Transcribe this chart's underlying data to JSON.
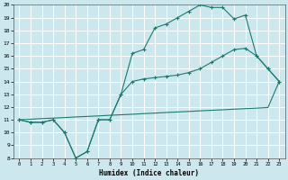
{
  "title": "",
  "xlabel": "Humidex (Indice chaleur)",
  "xlim": [
    -0.5,
    23.5
  ],
  "ylim": [
    8,
    20
  ],
  "xticks": [
    0,
    1,
    2,
    3,
    4,
    5,
    6,
    7,
    8,
    9,
    10,
    11,
    12,
    13,
    14,
    15,
    16,
    17,
    18,
    19,
    20,
    21,
    22,
    23
  ],
  "yticks": [
    8,
    9,
    10,
    11,
    12,
    13,
    14,
    15,
    16,
    17,
    18,
    19,
    20
  ],
  "bg_color": "#cce8ee",
  "line_color": "#1a7a6e",
  "grid_major_color": "#aacccc",
  "grid_minor_color": "#bbdddd",
  "line1_x": [
    0,
    1,
    2,
    3,
    4,
    5,
    6,
    7,
    8,
    9,
    10,
    11,
    12,
    13,
    14,
    15,
    16,
    17,
    18,
    19,
    20,
    21,
    22,
    23
  ],
  "line1_y": [
    11,
    10.8,
    10.8,
    11,
    10,
    8,
    8.5,
    11,
    11,
    13,
    16.2,
    16.5,
    18.2,
    18.5,
    19.0,
    19.5,
    20,
    19.8,
    19.8,
    18.9,
    19.2,
    16.0,
    15.0,
    14.0
  ],
  "line2_x": [
    0,
    1,
    2,
    3,
    4,
    5,
    6,
    7,
    8,
    9,
    10,
    11,
    12,
    13,
    14,
    15,
    16,
    17,
    18,
    19,
    20,
    21,
    22,
    23
  ],
  "line2_y": [
    11,
    10.8,
    10.8,
    11,
    10,
    8,
    8.5,
    11,
    11,
    13,
    14,
    14.2,
    14.3,
    14.4,
    14.5,
    14.7,
    15.0,
    15.5,
    16.0,
    16.5,
    16.6,
    16.0,
    15.0,
    14.0
  ],
  "line3_x": [
    0,
    1,
    2,
    3,
    4,
    5,
    6,
    7,
    8,
    9,
    10,
    11,
    12,
    13,
    14,
    15,
    16,
    17,
    18,
    19,
    20,
    21,
    22,
    23
  ],
  "line3_y": [
    11,
    11.04,
    11.09,
    11.13,
    11.17,
    11.22,
    11.26,
    11.3,
    11.35,
    11.39,
    11.43,
    11.48,
    11.52,
    11.57,
    11.61,
    11.65,
    11.7,
    11.74,
    11.78,
    11.83,
    11.87,
    11.91,
    11.96,
    14.0
  ]
}
